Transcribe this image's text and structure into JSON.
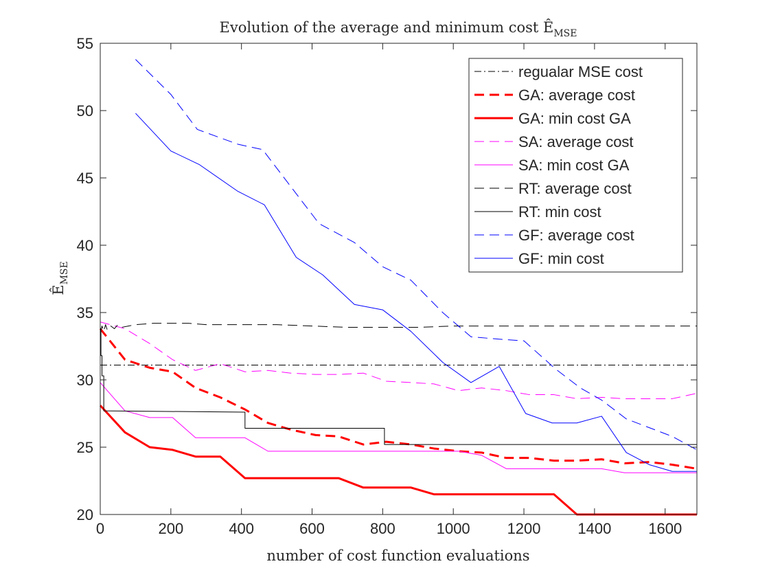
{
  "chart_data": {
    "type": "line",
    "title": "Evolution of the average and minimum cost Ê_MSE",
    "title_main": "Evolution of the average and minimum cost Ê",
    "title_sub": "MSE",
    "xlabel": "number of cost function evaluations",
    "ylabel": "Ê_MSE",
    "ylabel_main": "Ê",
    "ylabel_sub": "MSE",
    "xlim": [
      0,
      1690
    ],
    "ylim": [
      20,
      55
    ],
    "xticks": [
      0,
      200,
      400,
      600,
      800,
      1000,
      1200,
      1400,
      1600
    ],
    "yticks": [
      20,
      25,
      30,
      35,
      40,
      45,
      50,
      55
    ],
    "grid": false,
    "legend_position": "top-right",
    "series": [
      {
        "name": "regualar MSE cost",
        "color": "#000000",
        "dash": "dashdot",
        "width": 1,
        "x": [
          0,
          1690
        ],
        "y": [
          31.1,
          31.1
        ]
      },
      {
        "name": "GA: average cost",
        "color": "#ff0000",
        "dash": "dashed",
        "width": 3,
        "x": [
          0,
          70,
          140,
          205,
          270,
          340,
          410,
          475,
          540,
          610,
          675,
          745,
          810,
          880,
          945,
          1015,
          1080,
          1150,
          1215,
          1285,
          1350,
          1420,
          1485,
          1555,
          1620,
          1690
        ],
        "y": [
          33.8,
          31.5,
          30.9,
          30.6,
          29.4,
          28.7,
          27.8,
          26.8,
          26.3,
          25.9,
          25.8,
          25.2,
          25.4,
          25.2,
          24.9,
          24.7,
          24.6,
          24.2,
          24.2,
          24.0,
          24.0,
          24.1,
          23.8,
          23.9,
          23.7,
          23.4
        ]
      },
      {
        "name": "GA: min cost GA",
        "color": "#ff0000",
        "dash": "solid",
        "width": 3,
        "x": [
          0,
          70,
          140,
          205,
          270,
          340,
          410,
          475,
          540,
          610,
          675,
          745,
          810,
          880,
          945,
          1015,
          1080,
          1150,
          1215,
          1285,
          1350,
          1420,
          1485,
          1555,
          1620,
          1690
        ],
        "y": [
          28.1,
          26.1,
          25.0,
          24.8,
          24.3,
          24.3,
          22.7,
          22.7,
          22.7,
          22.7,
          22.7,
          22.0,
          22.0,
          22.0,
          21.5,
          21.5,
          21.5,
          21.5,
          21.5,
          21.5,
          20.0,
          20.0,
          20.0,
          20.0,
          20.0,
          20.0
        ]
      },
      {
        "name": "SA: average cost",
        "color": "#ff00ff",
        "dash": "dashed",
        "width": 1,
        "x": [
          0,
          70,
          140,
          205,
          270,
          340,
          410,
          475,
          540,
          610,
          675,
          745,
          810,
          880,
          945,
          1015,
          1080,
          1150,
          1215,
          1285,
          1350,
          1420,
          1485,
          1555,
          1620,
          1690
        ],
        "y": [
          34.3,
          33.8,
          32.7,
          31.5,
          30.7,
          31.2,
          30.6,
          30.7,
          30.5,
          30.4,
          30.4,
          30.5,
          29.9,
          29.8,
          29.7,
          29.2,
          29.4,
          29.2,
          28.9,
          28.9,
          28.6,
          28.7,
          28.6,
          28.6,
          28.6,
          29.0
        ]
      },
      {
        "name": "SA: min cost GA",
        "color": "#ff00ff",
        "dash": "solid",
        "width": 1,
        "x": [
          0,
          70,
          140,
          205,
          270,
          340,
          410,
          475,
          540,
          610,
          675,
          745,
          810,
          880,
          945,
          1015,
          1080,
          1150,
          1215,
          1285,
          1350,
          1420,
          1485,
          1555,
          1620,
          1690
        ],
        "y": [
          29.8,
          27.7,
          27.2,
          27.2,
          25.7,
          25.7,
          25.7,
          24.7,
          24.7,
          24.7,
          24.7,
          24.7,
          24.7,
          24.7,
          24.7,
          24.7,
          24.4,
          23.4,
          23.4,
          23.4,
          23.4,
          23.4,
          23.1,
          23.1,
          23.1,
          23.1
        ]
      },
      {
        "name": "RT: average cost",
        "color": "#000000",
        "dash": "dashed",
        "width": 1,
        "x": [
          0,
          5,
          10,
          15,
          20,
          30,
          40,
          50,
          60,
          80,
          100,
          150,
          200,
          250,
          300,
          400,
          500,
          600,
          700,
          800,
          900,
          1000,
          1100,
          1200,
          1300,
          1400,
          1500,
          1600,
          1690
        ],
        "y": [
          33.5,
          34.0,
          33.6,
          34.1,
          33.7,
          34.0,
          33.8,
          34.1,
          33.9,
          34.0,
          34.1,
          34.2,
          34.2,
          34.2,
          34.1,
          34.1,
          34.1,
          34.0,
          33.9,
          33.9,
          33.9,
          34.0,
          34.0,
          34.0,
          34.0,
          34.0,
          34.0,
          34.0,
          34.0
        ]
      },
      {
        "name": "RT: min cost",
        "color": "#000000",
        "dash": "solid",
        "width": 1,
        "x": [
          0,
          2,
          2,
          5,
          5,
          10,
          10,
          410,
          410,
          805,
          805,
          1690
        ],
        "y": [
          33.8,
          33.8,
          31.8,
          31.8,
          30.3,
          30.3,
          27.7,
          27.6,
          26.4,
          26.4,
          25.2,
          25.2
        ]
      },
      {
        "name": "GF: average cost",
        "color": "#0000ff",
        "dash": "dashed",
        "width": 1,
        "x": [
          100,
          200,
          275,
          390,
          460,
          550,
          620,
          720,
          800,
          880,
          970,
          1050,
          1140,
          1200,
          1290,
          1360,
          1420,
          1490,
          1550,
          1620,
          1690
        ],
        "y": [
          53.8,
          51.2,
          48.6,
          47.5,
          47.1,
          44.0,
          41.6,
          40.2,
          38.4,
          37.4,
          35.0,
          33.2,
          33.0,
          32.9,
          30.8,
          29.4,
          28.5,
          27.1,
          26.5,
          25.8,
          24.8
        ]
      },
      {
        "name": "GF: min cost",
        "color": "#0000ff",
        "dash": "solid",
        "width": 1,
        "x": [
          100,
          200,
          280,
          390,
          465,
          555,
          630,
          720,
          800,
          880,
          970,
          1050,
          1130,
          1205,
          1280,
          1350,
          1420,
          1490,
          1555,
          1620,
          1690
        ],
        "y": [
          49.8,
          47.0,
          46.0,
          44.0,
          43.0,
          39.1,
          37.8,
          35.6,
          35.2,
          33.6,
          31.3,
          29.8,
          31.0,
          27.5,
          26.8,
          26.8,
          27.3,
          24.6,
          23.7,
          23.2,
          23.2
        ]
      }
    ]
  }
}
